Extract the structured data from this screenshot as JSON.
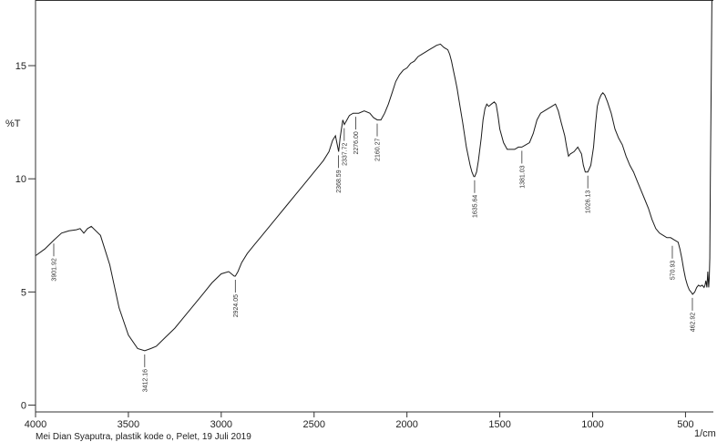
{
  "chart_data": {
    "type": "line",
    "ylabel": "%T",
    "xunit": "1/cm",
    "caption": "Mei Dian Syaputra, plastik kode o, Pelet, 19 Juli 2019",
    "xlim": [
      4000,
      350
    ],
    "ylim": [
      -0.3,
      17.9
    ],
    "x_ticks": [
      4000,
      3500,
      3000,
      2500,
      2000,
      1500,
      1000,
      500
    ],
    "y_ticks": [
      0,
      5,
      10,
      15
    ],
    "grid": false,
    "series": [
      {
        "x": [
          4000,
          3950,
          3900,
          3860,
          3820,
          3780,
          3760,
          3740,
          3720,
          3700,
          3650,
          3600,
          3550,
          3500,
          3450,
          3412,
          3380,
          3350,
          3300,
          3250,
          3200,
          3150,
          3100,
          3050,
          3000,
          2960,
          2930,
          2924,
          2910,
          2890,
          2860,
          2820,
          2780,
          2740,
          2700,
          2650,
          2600,
          2550,
          2500,
          2450,
          2420,
          2400,
          2385,
          2375,
          2368,
          2360,
          2345,
          2337,
          2330,
          2310,
          2290,
          2276,
          2260,
          2230,
          2200,
          2180,
          2160,
          2140,
          2120,
          2100,
          2080,
          2060,
          2040,
          2020,
          2000,
          1980,
          1960,
          1940,
          1920,
          1900,
          1880,
          1860,
          1840,
          1820,
          1800,
          1780,
          1770,
          1760,
          1750,
          1740,
          1730,
          1720,
          1700,
          1680,
          1660,
          1650,
          1640,
          1635,
          1625,
          1615,
          1600,
          1590,
          1580,
          1570,
          1560,
          1545,
          1530,
          1520,
          1510,
          1500,
          1480,
          1460,
          1440,
          1420,
          1400,
          1381,
          1360,
          1340,
          1320,
          1300,
          1280,
          1260,
          1240,
          1220,
          1200,
          1185,
          1170,
          1150,
          1140,
          1130,
          1120,
          1100,
          1080,
          1060,
          1050,
          1040,
          1026,
          1010,
          995,
          985,
          975,
          965,
          955,
          945,
          935,
          920,
          900,
          880,
          860,
          840,
          820,
          800,
          780,
          760,
          740,
          720,
          700,
          680,
          660,
          640,
          620,
          600,
          580,
          560,
          540,
          530,
          520,
          510,
          500,
          490,
          480,
          470,
          462,
          450,
          440,
          430,
          420,
          410,
          400,
          395,
          390,
          385,
          380,
          375,
          372,
          369,
          366,
          362,
          358
        ],
        "y": [
          6.6,
          6.9,
          7.3,
          7.6,
          7.7,
          7.75,
          7.8,
          7.6,
          7.8,
          7.9,
          7.5,
          6.2,
          4.3,
          3.1,
          2.5,
          2.4,
          2.5,
          2.6,
          3.0,
          3.4,
          3.9,
          4.4,
          4.9,
          5.4,
          5.8,
          5.9,
          5.7,
          5.7,
          5.9,
          6.3,
          6.7,
          7.1,
          7.5,
          7.9,
          8.3,
          8.8,
          9.3,
          9.8,
          10.3,
          10.8,
          11.2,
          11.7,
          11.9,
          11.5,
          11.2,
          11.8,
          12.6,
          12.4,
          12.5,
          12.8,
          12.9,
          12.9,
          12.9,
          13.0,
          12.9,
          12.7,
          12.6,
          12.6,
          12.9,
          13.3,
          13.8,
          14.3,
          14.6,
          14.8,
          14.9,
          15.1,
          15.2,
          15.4,
          15.5,
          15.6,
          15.7,
          15.8,
          15.9,
          15.95,
          15.8,
          15.7,
          15.5,
          15.2,
          14.8,
          14.4,
          14.0,
          13.5,
          12.5,
          11.4,
          10.6,
          10.3,
          10.1,
          10.1,
          10.3,
          10.8,
          11.8,
          12.6,
          13.1,
          13.3,
          13.2,
          13.3,
          13.4,
          13.3,
          12.8,
          12.2,
          11.6,
          11.3,
          11.3,
          11.3,
          11.4,
          11.4,
          11.5,
          11.6,
          12.0,
          12.6,
          12.9,
          13.0,
          13.1,
          13.2,
          13.3,
          13.0,
          12.5,
          11.9,
          11.4,
          11.0,
          11.1,
          11.2,
          11.4,
          11.1,
          10.6,
          10.3,
          10.3,
          10.6,
          11.4,
          12.4,
          13.2,
          13.5,
          13.7,
          13.8,
          13.7,
          13.4,
          12.9,
          12.2,
          11.8,
          11.5,
          11.0,
          10.6,
          10.3,
          9.9,
          9.5,
          9.1,
          8.7,
          8.2,
          7.8,
          7.6,
          7.5,
          7.4,
          7.4,
          7.3,
          7.2,
          6.9,
          6.5,
          6.0,
          5.6,
          5.3,
          5.1,
          5.0,
          4.9,
          5.0,
          5.2,
          5.3,
          5.25,
          5.3,
          5.2,
          5.3,
          5.5,
          5.2,
          5.9,
          5.2,
          5.6,
          6.5,
          10.0,
          14.0,
          17.9
        ]
      }
    ],
    "peak_labels": [
      {
        "text": "3901.92",
        "x": 3901.92,
        "y": 7.3
      },
      {
        "text": "3412.16",
        "x": 3412.16,
        "y": 2.4
      },
      {
        "text": "2924.05",
        "x": 2924.05,
        "y": 5.7
      },
      {
        "text": "2368.59",
        "x": 2368.59,
        "y": 11.2
      },
      {
        "text": "2337.72",
        "x": 2337.72,
        "y": 12.4
      },
      {
        "text": "2276.00",
        "x": 2276.0,
        "y": 12.9
      },
      {
        "text": "2160.27",
        "x": 2160.27,
        "y": 12.6
      },
      {
        "text": "1635.64",
        "x": 1635.64,
        "y": 10.1
      },
      {
        "text": "1381.03",
        "x": 1381.03,
        "y": 11.4
      },
      {
        "text": "1026.13",
        "x": 1026.13,
        "y": 10.3
      },
      {
        "text": "570.93",
        "x": 570.93,
        "y": 7.2
      },
      {
        "text": "462.92",
        "x": 462.92,
        "y": 4.9
      }
    ]
  }
}
